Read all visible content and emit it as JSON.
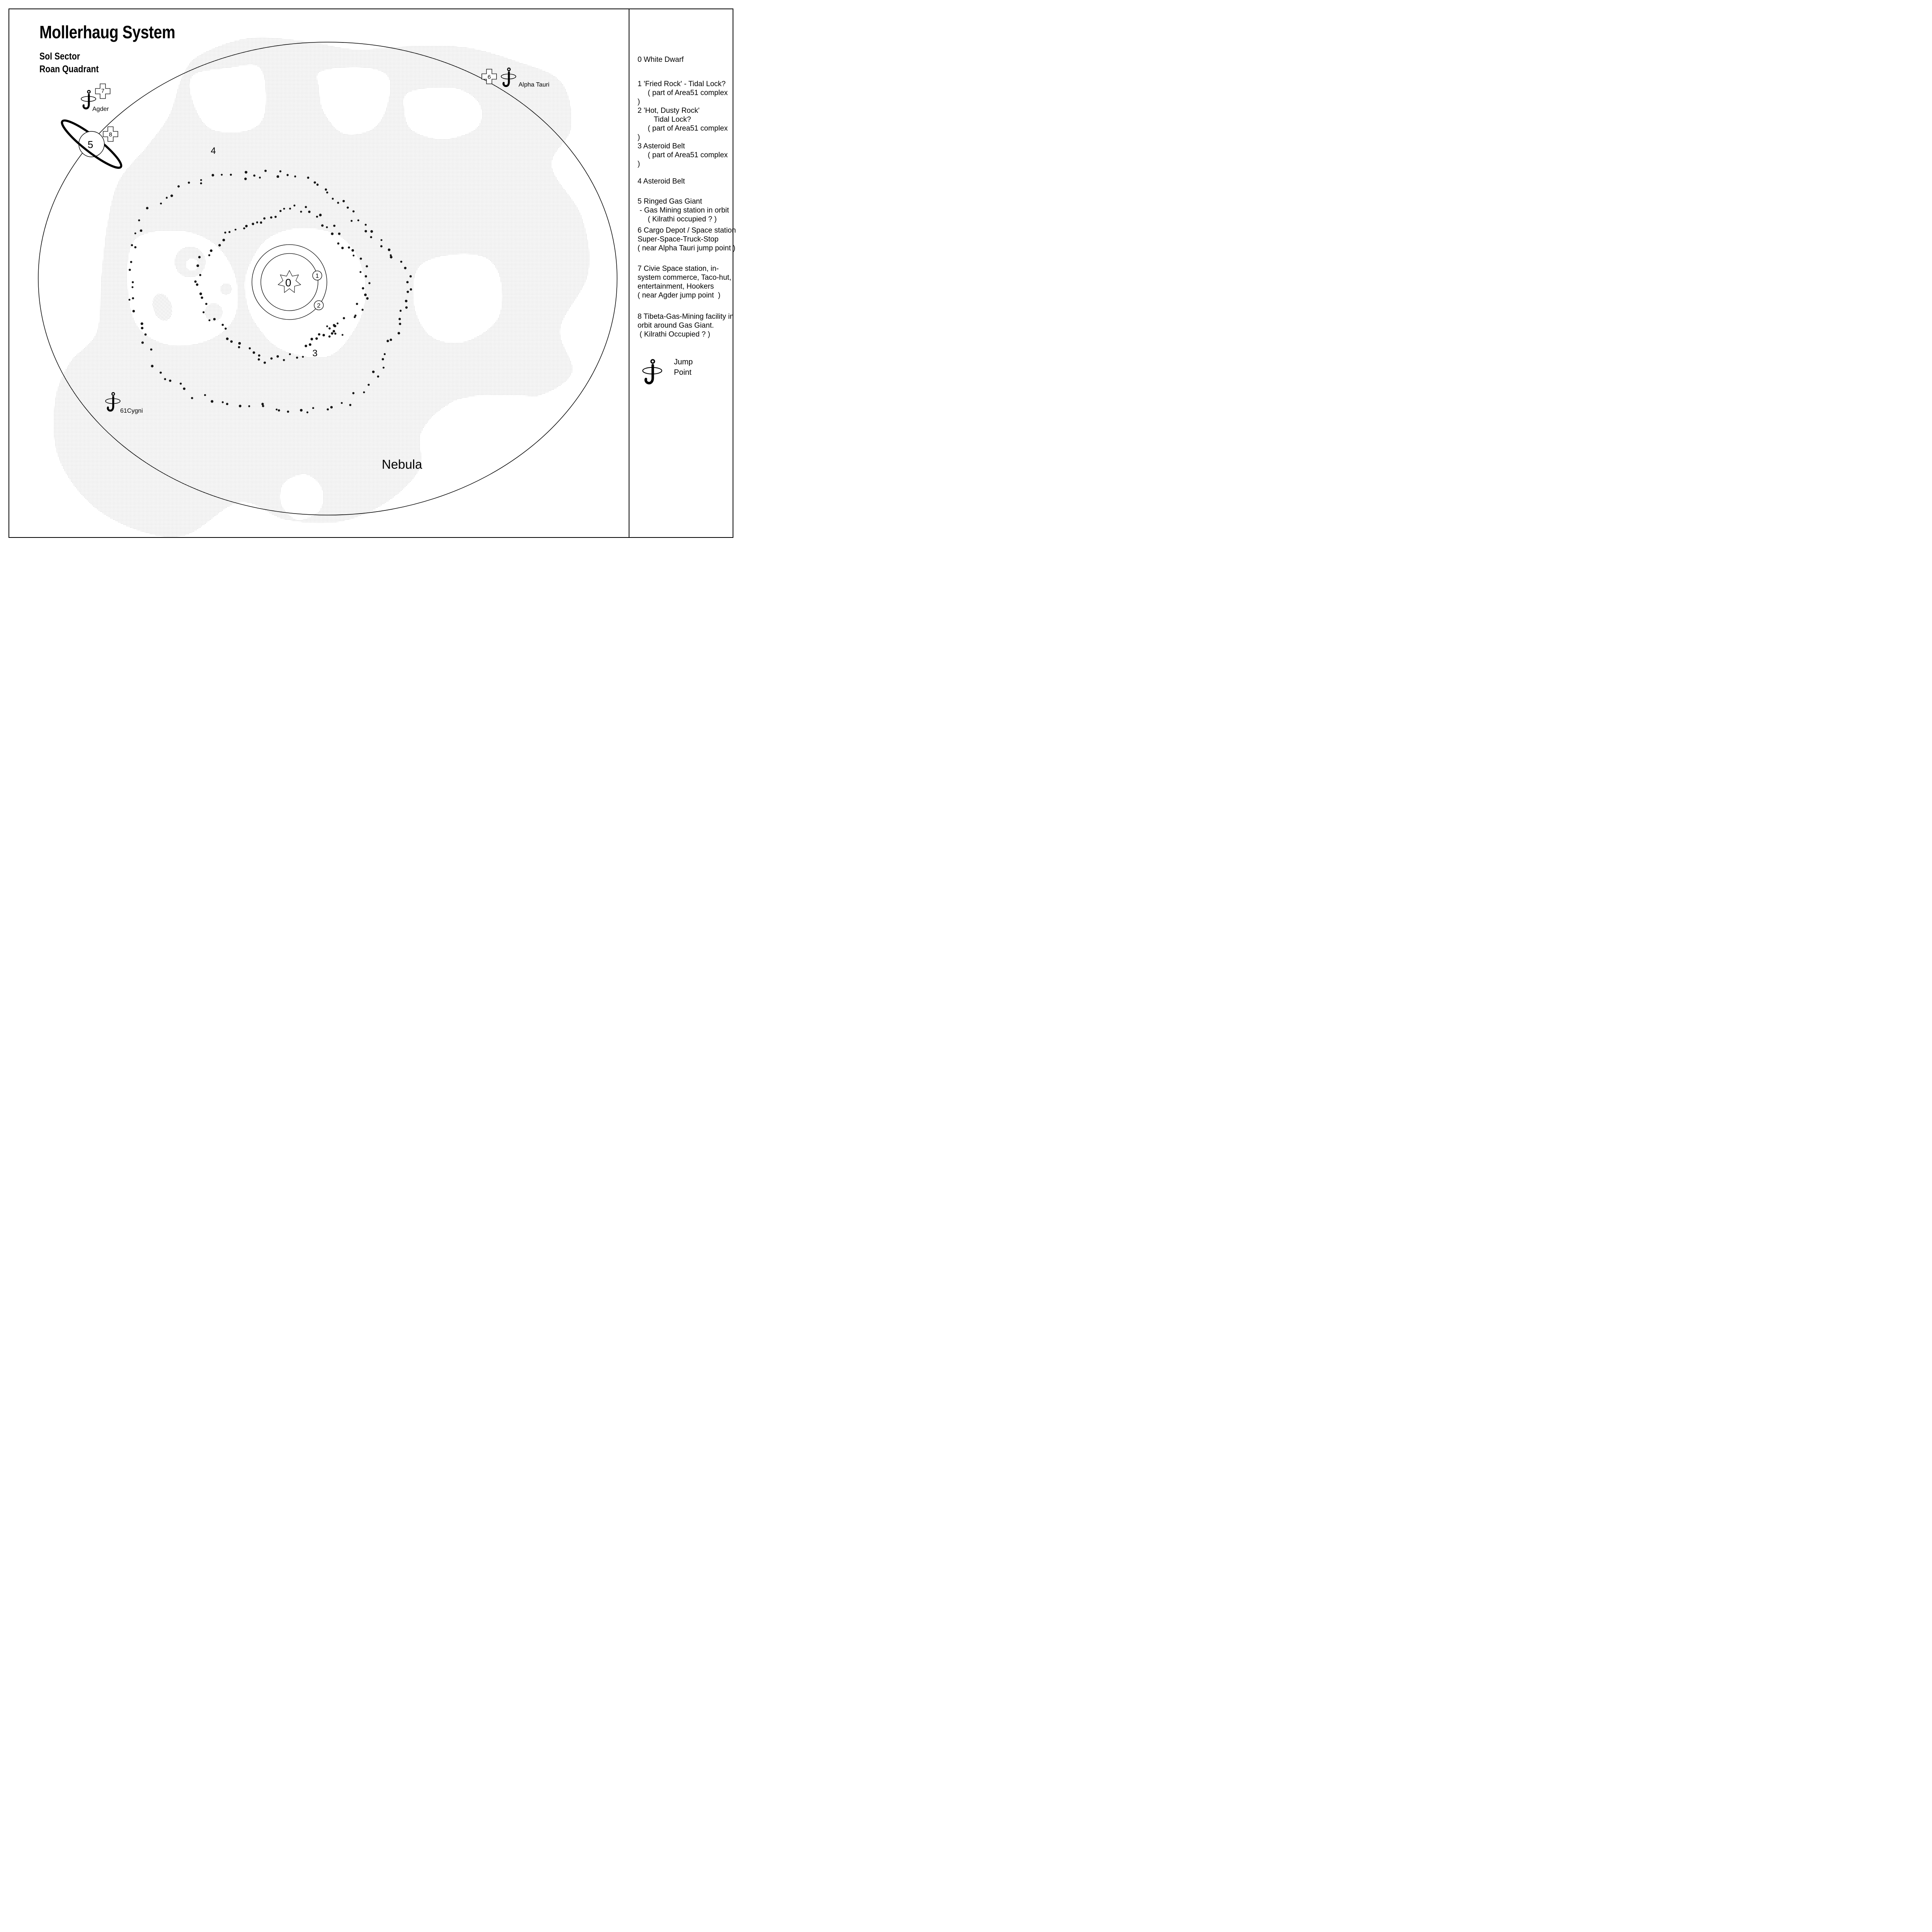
{
  "title": "Mollerhaug System",
  "sector": "Sol Sector",
  "quadrant": "Roan Quadrant",
  "map": {
    "nebula_label": "Nebula",
    "star_label": "0",
    "planet1_label": "1",
    "planet2_label": "2",
    "belt3_label": "3",
    "belt4_label": "4",
    "gas_giant_label": "5",
    "station6_label": "6",
    "station7_label": "7",
    "station8_label": "8",
    "jump_points": {
      "agder": "Agder",
      "alpha_tauri": "Alpha Tauri",
      "cygni61": "61Cygni"
    }
  },
  "legend": {
    "items": [
      {
        "text": "0 White Dwarf"
      },
      {
        "text": "1 'Fried Rock' - Tidal Lock?\n     ( part of Area51 complex\n)"
      },
      {
        "text": "2 'Hot, Dusty Rock'\n        Tidal Lock?\n     ( part of Area51 complex\n)"
      },
      {
        "text": "3 Asteroid Belt\n     ( part of Area51 complex\n)"
      },
      {
        "text": "4 Asteroid Belt"
      },
      {
        "text": "5 Ringed Gas Giant\n - Gas Mining station in orbit\n     ( Kilrathi occupied ? )"
      },
      {
        "text": "6 Cargo Depot / Space station\nSuper-Space-Truck-Stop\n( near Alpha Tauri jump point )"
      },
      {
        "text": "7 Civie Space station, in-\nsystem commerce, Taco-hut,\nentertainment, Hookers\n( near Agder jump point  )"
      },
      {
        "text": "8 Tibeta-Gas-Mining facility in\norbit around Gas Giant.\n ( Kilrathi Occupied ? )"
      }
    ],
    "jump_point_label": "Jump\nPoint"
  },
  "belts": {
    "belt3": {
      "count": 85
    },
    "belt4": {
      "count": 105
    },
    "cluster": {
      "count": 7
    }
  },
  "colors": {
    "ink": "#000000",
    "nebula_dot": "#8a8a8a",
    "paper": "#ffffff"
  }
}
